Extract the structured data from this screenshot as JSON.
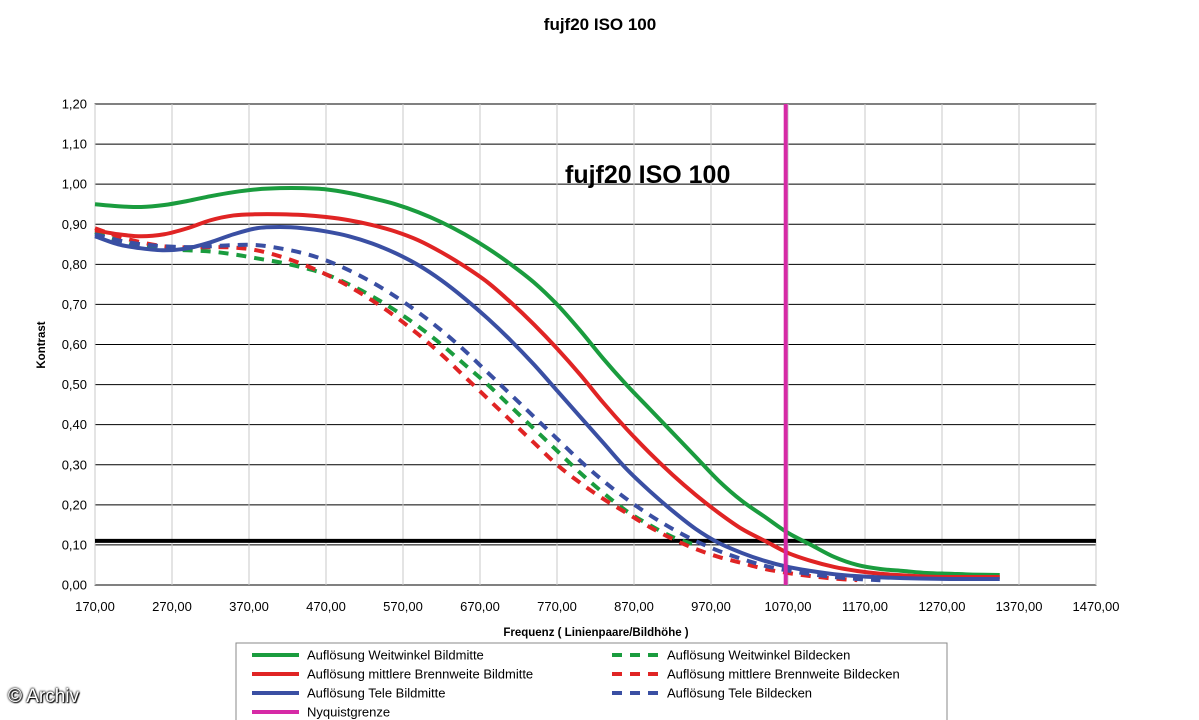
{
  "chart_data": {
    "type": "line",
    "title": "fujf20 ISO 100",
    "inner_title": "fujf20 ISO 100",
    "xlabel": "Frequenz ( Linienpaare/Bildhöhe )",
    "ylabel": "Kontrast",
    "xlim": [
      170,
      1470
    ],
    "ylim": [
      0,
      1.2
    ],
    "x_ticks": [
      "170,00",
      "270,00",
      "370,00",
      "470,00",
      "570,00",
      "670,00",
      "770,00",
      "870,00",
      "970,00",
      "1070,00",
      "1170,00",
      "1270,00",
      "1370,00",
      "1470,00"
    ],
    "y_ticks": [
      "0,00",
      "0,10",
      "0,20",
      "0,30",
      "0,40",
      "0,50",
      "0,60",
      "0,70",
      "0,80",
      "0,90",
      "1,00",
      "1,10",
      "1,20"
    ],
    "grid": true,
    "legend_position": "bottom",
    "threshold_line": {
      "y": 0.11,
      "color": "#000000"
    },
    "series": [
      {
        "name": "Auflösung Weitwinkel Bildmitte",
        "color": "#1a9c3e",
        "dash": false,
        "x": [
          170,
          200,
          230,
          260,
          290,
          320,
          350,
          380,
          410,
          440,
          470,
          500,
          530,
          560,
          590,
          620,
          650,
          680,
          710,
          740,
          770,
          800,
          830,
          860,
          890,
          920,
          950,
          980,
          1010,
          1040,
          1070,
          1100,
          1130,
          1160,
          1190,
          1220,
          1250,
          1280,
          1310,
          1345
        ],
        "y": [
          0.95,
          0.945,
          0.943,
          0.948,
          0.958,
          0.97,
          0.98,
          0.987,
          0.99,
          0.99,
          0.987,
          0.978,
          0.965,
          0.95,
          0.93,
          0.905,
          0.875,
          0.84,
          0.8,
          0.755,
          0.7,
          0.635,
          0.565,
          0.5,
          0.44,
          0.38,
          0.32,
          0.26,
          0.21,
          0.17,
          0.13,
          0.1,
          0.07,
          0.05,
          0.04,
          0.035,
          0.03,
          0.028,
          0.026,
          0.025
        ]
      },
      {
        "name": "Auflösung mittlere Brennweite Bildmitte",
        "color": "#e02424",
        "dash": false,
        "x": [
          170,
          200,
          230,
          260,
          290,
          320,
          350,
          380,
          410,
          440,
          470,
          500,
          530,
          560,
          590,
          620,
          650,
          680,
          710,
          740,
          770,
          800,
          830,
          860,
          890,
          920,
          950,
          980,
          1010,
          1040,
          1070,
          1100,
          1130,
          1160,
          1190,
          1220,
          1250,
          1280,
          1310,
          1345
        ],
        "y": [
          0.885,
          0.875,
          0.87,
          0.875,
          0.89,
          0.91,
          0.922,
          0.925,
          0.925,
          0.923,
          0.918,
          0.91,
          0.898,
          0.882,
          0.86,
          0.83,
          0.795,
          0.755,
          0.705,
          0.65,
          0.59,
          0.525,
          0.455,
          0.39,
          0.33,
          0.275,
          0.225,
          0.18,
          0.14,
          0.11,
          0.08,
          0.06,
          0.045,
          0.035,
          0.028,
          0.024,
          0.021,
          0.02,
          0.02,
          0.02
        ]
      },
      {
        "name": "Auflösung Tele Bildmitte",
        "color": "#3a4fa3",
        "dash": false,
        "x": [
          170,
          200,
          230,
          260,
          290,
          320,
          350,
          380,
          410,
          440,
          470,
          500,
          530,
          560,
          590,
          620,
          650,
          680,
          710,
          740,
          770,
          800,
          830,
          860,
          890,
          920,
          950,
          980,
          1010,
          1040,
          1070,
          1100,
          1130,
          1160,
          1190,
          1220,
          1250,
          1280,
          1310,
          1345
        ],
        "y": [
          0.87,
          0.85,
          0.84,
          0.835,
          0.84,
          0.855,
          0.875,
          0.89,
          0.893,
          0.89,
          0.882,
          0.87,
          0.852,
          0.828,
          0.798,
          0.76,
          0.715,
          0.665,
          0.61,
          0.55,
          0.485,
          0.42,
          0.355,
          0.29,
          0.235,
          0.185,
          0.14,
          0.105,
          0.08,
          0.06,
          0.045,
          0.035,
          0.027,
          0.022,
          0.019,
          0.017,
          0.016,
          0.015,
          0.015,
          0.015
        ]
      },
      {
        "name": "Auflösung Weitwinkel Bildecken",
        "color": "#1a9c3e",
        "dash": true,
        "x": [
          170,
          200,
          230,
          260,
          290,
          320,
          350,
          380,
          410,
          440,
          470,
          500,
          530,
          560,
          590,
          620,
          650,
          680,
          710,
          740,
          770,
          800,
          830,
          860,
          890,
          920,
          950
        ],
        "y": [
          0.88,
          0.86,
          0.845,
          0.838,
          0.835,
          0.832,
          0.825,
          0.815,
          0.805,
          0.792,
          0.775,
          0.75,
          0.72,
          0.685,
          0.645,
          0.6,
          0.55,
          0.5,
          0.445,
          0.39,
          0.335,
          0.28,
          0.23,
          0.185,
          0.15,
          0.12,
          0.1
        ]
      },
      {
        "name": "Auflösung mittlere Brennweite Bildecken",
        "color": "#e02424",
        "dash": true,
        "x": [
          170,
          200,
          230,
          260,
          290,
          320,
          350,
          380,
          410,
          440,
          470,
          500,
          530,
          560,
          590,
          620,
          650,
          680,
          710,
          740,
          770,
          800,
          830,
          860,
          890,
          920,
          950,
          980,
          1010,
          1040,
          1070,
          1100,
          1130,
          1160
        ],
        "y": [
          0.89,
          0.87,
          0.855,
          0.845,
          0.842,
          0.843,
          0.842,
          0.835,
          0.82,
          0.8,
          0.775,
          0.745,
          0.71,
          0.67,
          0.625,
          0.575,
          0.52,
          0.465,
          0.41,
          0.355,
          0.3,
          0.255,
          0.215,
          0.18,
          0.145,
          0.115,
          0.09,
          0.07,
          0.055,
          0.04,
          0.03,
          0.022,
          0.016,
          0.012
        ]
      },
      {
        "name": "Auflösung Tele Bildecken",
        "color": "#3a4fa3",
        "dash": true,
        "x": [
          170,
          200,
          230,
          260,
          290,
          320,
          350,
          380,
          410,
          440,
          470,
          500,
          530,
          560,
          590,
          620,
          650,
          680,
          710,
          740,
          770,
          800,
          830,
          860,
          890,
          920,
          950,
          980,
          1010,
          1040,
          1070,
          1100,
          1130,
          1160,
          1190
        ],
        "y": [
          0.875,
          0.86,
          0.85,
          0.845,
          0.843,
          0.845,
          0.848,
          0.848,
          0.84,
          0.828,
          0.81,
          0.785,
          0.755,
          0.72,
          0.68,
          0.635,
          0.585,
          0.53,
          0.475,
          0.42,
          0.365,
          0.31,
          0.26,
          0.215,
          0.175,
          0.14,
          0.11,
          0.085,
          0.065,
          0.048,
          0.036,
          0.027,
          0.02,
          0.015,
          0.012
        ]
      }
    ],
    "nyquist": {
      "name": "Nyquistgrenze",
      "x": 1067,
      "color": "#d62aa6"
    },
    "legend_items": [
      {
        "label": "Auflösung Weitwinkel Bildmitte",
        "color": "#1a9c3e",
        "dash": false
      },
      {
        "label": "Auflösung Weitwinkel Bildecken",
        "color": "#1a9c3e",
        "dash": true
      },
      {
        "label": "Auflösung mittlere Brennweite Bildmitte",
        "color": "#e02424",
        "dash": false
      },
      {
        "label": "Auflösung mittlere Brennweite Bildecken",
        "color": "#e02424",
        "dash": true
      },
      {
        "label": "Auflösung Tele Bildmitte",
        "color": "#3a4fa3",
        "dash": false
      },
      {
        "label": "Auflösung Tele Bildecken",
        "color": "#3a4fa3",
        "dash": true
      },
      {
        "label": "Nyquistgrenze",
        "color": "#d62aa6",
        "dash": false
      }
    ]
  },
  "watermark": "© Archiv"
}
